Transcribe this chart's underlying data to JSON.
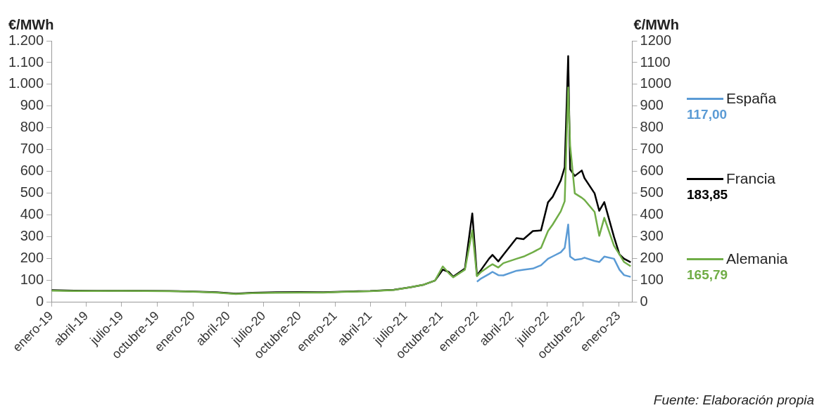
{
  "chart_data": {
    "type": "line",
    "ylabel": "€/MWh",
    "y2label": "€/MWh",
    "x": [
      "2019-01-02",
      "2019-03-01",
      "2019-05-01",
      "2019-07-01",
      "2019-09-01",
      "2019-11-01",
      "2020-01-01",
      "2020-03-01",
      "2020-04-20",
      "2020-06-01",
      "2020-08-01",
      "2020-10-01",
      "2020-12-01",
      "2021-02-01",
      "2021-04-01",
      "2021-06-01",
      "2021-07-15",
      "2021-08-15",
      "2021-09-15",
      "2021-10-05",
      "2021-10-20",
      "2021-11-01",
      "2021-12-01",
      "2021-12-20",
      "2022-01-01",
      "2022-01-12",
      "2022-02-01",
      "2022-02-10",
      "2022-02-25",
      "2022-03-10",
      "2022-04-13",
      "2022-05-01",
      "2022-05-25",
      "2022-06-15",
      "2022-07-03",
      "2022-07-15",
      "2022-08-05",
      "2022-08-15",
      "2022-08-24",
      "2022-08-29",
      "2022-09-10",
      "2022-09-28",
      "2022-10-05",
      "2022-10-31",
      "2022-11-12",
      "2022-11-25",
      "2022-12-20",
      "2023-01-03",
      "2023-01-15",
      "2023-02-01"
    ],
    "series": [
      {
        "name": "España",
        "color": "#5b9bd5",
        "values": [
          null,
          null,
          null,
          null,
          null,
          null,
          null,
          null,
          null,
          null,
          null,
          null,
          null,
          null,
          null,
          null,
          null,
          null,
          null,
          null,
          null,
          null,
          null,
          null,
          95,
          110,
          130,
          140,
          125,
          124,
          145,
          150,
          155,
          170,
          200,
          211,
          230,
          250,
          357,
          210,
          195,
          200,
          205,
          190,
          185,
          210,
          200,
          150,
          125,
          117
        ]
      },
      {
        "name": "Francia",
        "color": "#000000",
        "values": [
          56,
          54,
          53,
          54,
          53,
          52,
          50,
          46,
          40,
          44,
          46,
          47,
          46,
          50,
          52,
          58,
          70,
          80,
          100,
          150,
          140,
          118,
          155,
          408,
          124,
          150,
          200,
          218,
          188,
          218,
          295,
          290,
          327,
          330,
          459,
          484,
          560,
          620,
          1130,
          610,
          580,
          605,
          570,
          500,
          420,
          460,
          300,
          220,
          200,
          183.85
        ]
      },
      {
        "name": "Alemania",
        "color": "#70ad47",
        "values": [
          54,
          52,
          52,
          53,
          52,
          51,
          49,
          45,
          38,
          42,
          44,
          45,
          45,
          49,
          51,
          57,
          70,
          80,
          100,
          165,
          135,
          115,
          150,
          330,
          120,
          140,
          165,
          175,
          160,
          180,
          200,
          210,
          230,
          250,
          327,
          357,
          418,
          464,
          986,
          720,
          500,
          480,
          470,
          415,
          305,
          388,
          260,
          220,
          185,
          165.79
        ]
      }
    ],
    "xlim": [
      "2019-01-01",
      "2023-02-05"
    ],
    "xticks": [
      {
        "value": "2019-01",
        "label": "enero-19"
      },
      {
        "value": "2019-04",
        "label": "abril-19"
      },
      {
        "value": "2019-07",
        "label": "julio-19"
      },
      {
        "value": "2019-10",
        "label": "octubre-19"
      },
      {
        "value": "2020-01",
        "label": "enero-20"
      },
      {
        "value": "2020-04",
        "label": "abril-20"
      },
      {
        "value": "2020-07",
        "label": "julio-20"
      },
      {
        "value": "2020-10",
        "label": "octubre-20"
      },
      {
        "value": "2021-01",
        "label": "enero-21"
      },
      {
        "value": "2021-04",
        "label": "abril-21"
      },
      {
        "value": "2021-07",
        "label": "julio-21"
      },
      {
        "value": "2021-10",
        "label": "octubre-21"
      },
      {
        "value": "2022-01",
        "label": "enero-22"
      },
      {
        "value": "2022-04",
        "label": "abril-22"
      },
      {
        "value": "2022-07",
        "label": "julio-22"
      },
      {
        "value": "2022-10",
        "label": "octubre-22"
      },
      {
        "value": "2023-01",
        "label": "enero-23"
      }
    ],
    "ylim": [
      0,
      1200
    ],
    "yticks": [
      0,
      100,
      200,
      300,
      400,
      500,
      600,
      700,
      800,
      900,
      {
        "value": 1000,
        "label": "1.000"
      },
      {
        "value": 1100,
        "label": "1.100"
      },
      {
        "value": 1200,
        "label": "1.200"
      }
    ],
    "y2lim": [
      0,
      1200
    ],
    "y2ticks": [
      0,
      100,
      200,
      300,
      400,
      500,
      600,
      700,
      800,
      900,
      1000,
      1100,
      1200
    ],
    "legend": "right",
    "grid": false,
    "marker": "none",
    "line_style": "solid",
    "annotations": [
      "117,00",
      "183,85",
      "165,79",
      "Fuente: Elaboración propia"
    ]
  }
}
